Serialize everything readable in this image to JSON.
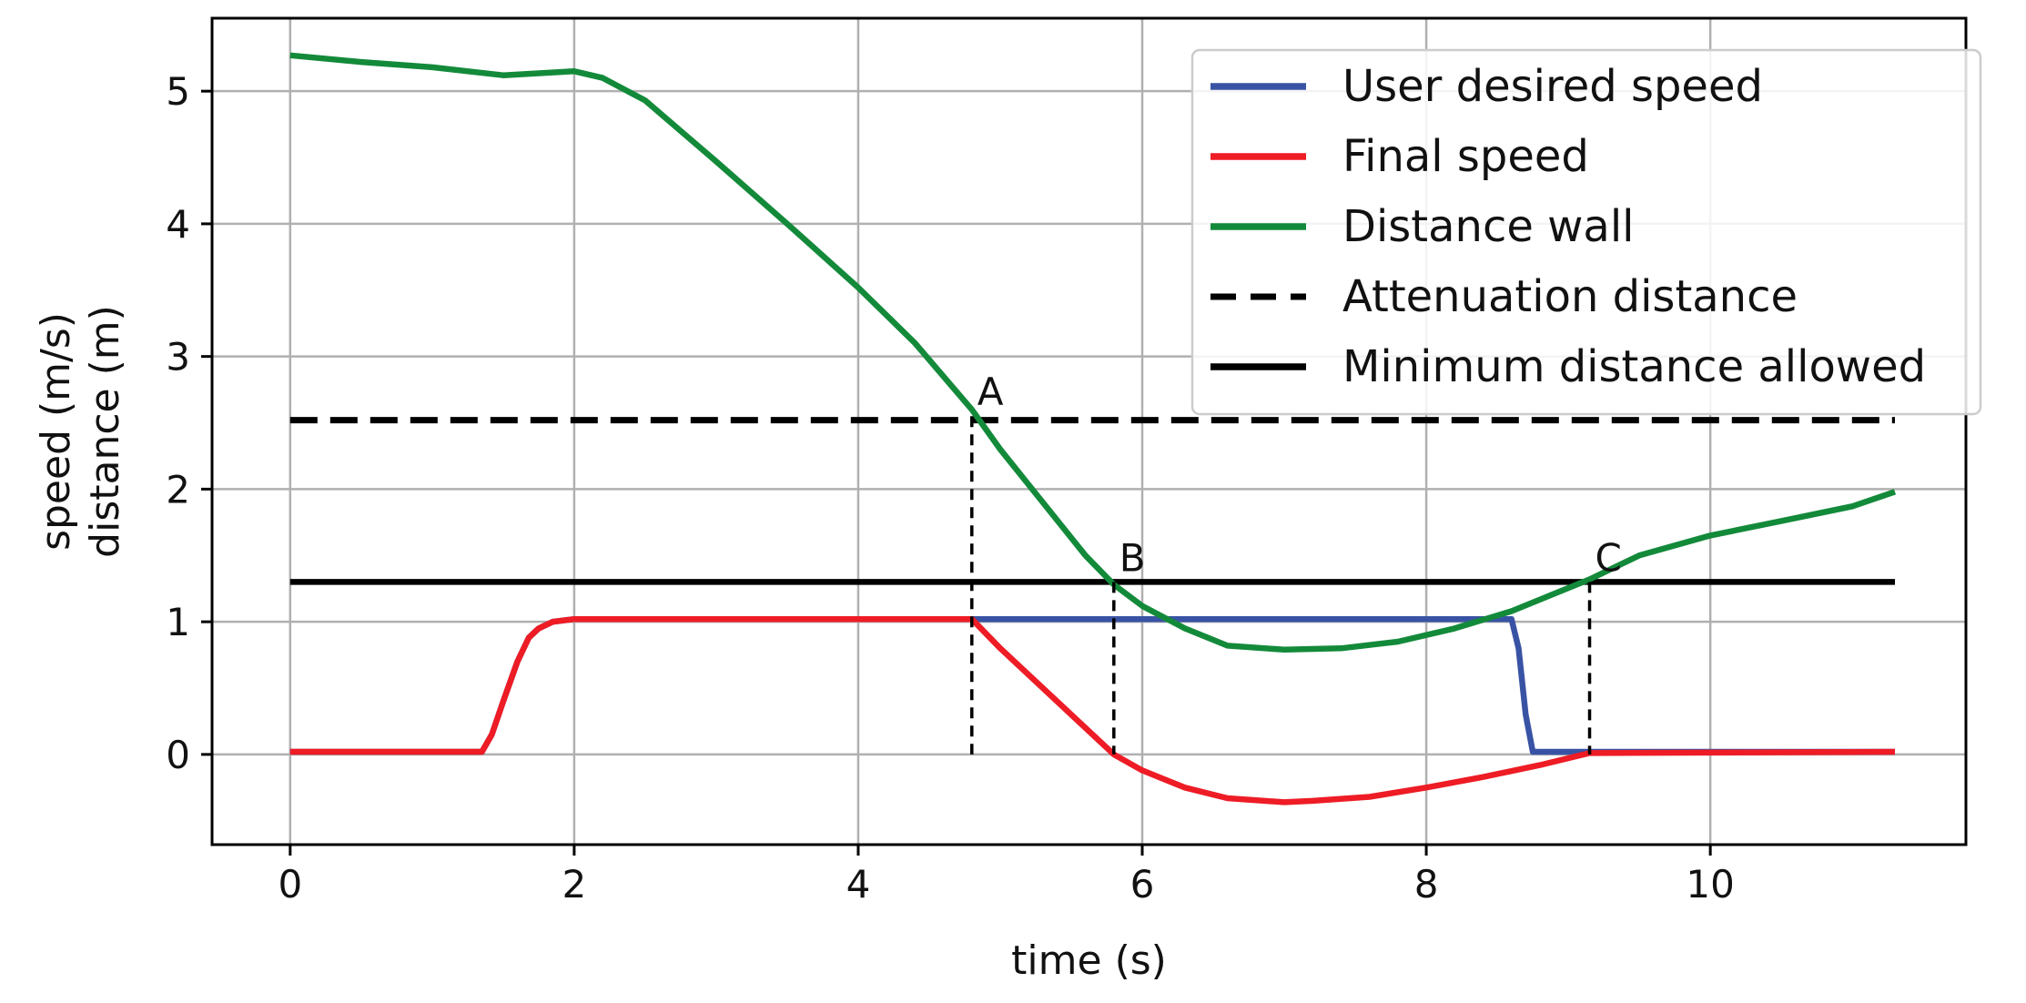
{
  "chart_data": {
    "type": "line",
    "title": "",
    "xlabel": "time (s)",
    "ylabel_lines": [
      "speed (m/s)",
      "distance (m)"
    ],
    "xlim": [
      -0.55,
      11.8
    ],
    "ylim": [
      -0.68,
      5.55
    ],
    "xticks": [
      0,
      2,
      4,
      6,
      8,
      10
    ],
    "yticks": [
      0,
      1,
      2,
      3,
      4,
      5
    ],
    "grid": true,
    "legend_position": "top-right",
    "series": [
      {
        "name": "User desired speed",
        "color": "#3953a4",
        "style": "solid",
        "x": [
          0,
          1.35,
          1.42,
          1.5,
          1.6,
          1.68,
          1.75,
          1.85,
          2.0,
          4.8,
          8.6,
          8.65,
          8.7,
          8.75,
          11.3
        ],
        "y": [
          0.02,
          0.02,
          0.15,
          0.4,
          0.7,
          0.88,
          0.95,
          1.0,
          1.02,
          1.02,
          1.02,
          0.8,
          0.3,
          0.02,
          0.02
        ]
      },
      {
        "name": "Final speed",
        "color": "#ee1c25",
        "style": "solid",
        "x": [
          0,
          1.35,
          1.42,
          1.5,
          1.6,
          1.68,
          1.75,
          1.85,
          2.0,
          4.8,
          5.0,
          5.3,
          5.6,
          5.8,
          6.0,
          6.3,
          6.6,
          7.0,
          7.2,
          7.6,
          8.0,
          8.4,
          8.8,
          9.15,
          11.3
        ],
        "y": [
          0.02,
          0.02,
          0.15,
          0.4,
          0.7,
          0.88,
          0.95,
          1.0,
          1.02,
          1.02,
          0.8,
          0.5,
          0.2,
          0.0,
          -0.12,
          -0.25,
          -0.33,
          -0.36,
          -0.35,
          -0.32,
          -0.25,
          -0.17,
          -0.08,
          0.01,
          0.02
        ]
      },
      {
        "name": "Distance wall",
        "color": "#138a3a",
        "style": "solid",
        "x": [
          0,
          0.5,
          1.0,
          1.5,
          2.0,
          2.2,
          2.5,
          3.0,
          3.5,
          4.0,
          4.4,
          4.8,
          5.0,
          5.3,
          5.6,
          5.8,
          6.0,
          6.3,
          6.6,
          7.0,
          7.4,
          7.8,
          8.2,
          8.6,
          9.15,
          9.5,
          10.0,
          10.5,
          11.0,
          11.3
        ],
        "y": [
          5.27,
          5.22,
          5.18,
          5.12,
          5.15,
          5.1,
          4.93,
          4.47,
          4.0,
          3.52,
          3.1,
          2.6,
          2.3,
          1.9,
          1.5,
          1.28,
          1.12,
          0.95,
          0.82,
          0.79,
          0.8,
          0.85,
          0.95,
          1.08,
          1.32,
          1.5,
          1.65,
          1.76,
          1.87,
          1.98
        ]
      },
      {
        "name": "Attenuation distance",
        "color": "#000000",
        "style": "dashed",
        "x": [
          0,
          11.3
        ],
        "y": [
          2.52,
          2.52
        ]
      },
      {
        "name": "Minimum distance allowed",
        "color": "#000000",
        "style": "solid",
        "x": [
          0,
          11.3
        ],
        "y": [
          1.3,
          1.3
        ]
      }
    ],
    "annotations": [
      {
        "label": "A",
        "x": 4.8,
        "y": 2.55
      },
      {
        "label": "B",
        "x": 5.8,
        "y": 1.3
      },
      {
        "label": "C",
        "x": 9.15,
        "y": 1.3
      }
    ],
    "markers": [
      {
        "x": 4.8,
        "y_top": 2.55,
        "y_bottom": 0
      },
      {
        "x": 5.8,
        "y_top": 1.3,
        "y_bottom": 0
      },
      {
        "x": 9.15,
        "y_top": 1.3,
        "y_bottom": 0
      }
    ]
  }
}
